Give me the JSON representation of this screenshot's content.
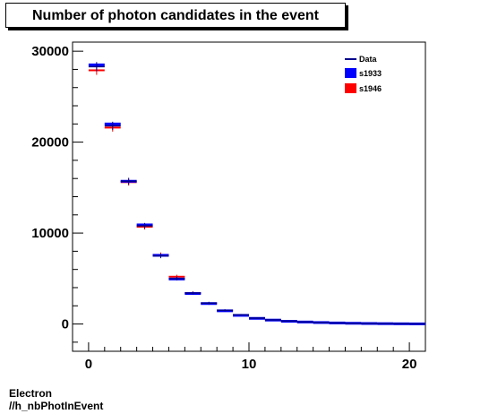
{
  "title": "Number of photon candidates in the event",
  "footer": {
    "line1": "Electron",
    "line2": "//h_nbPhotInEvent"
  },
  "colors": {
    "data": "#00008b",
    "s1933": "#0000ff",
    "s1946": "#ff0000"
  },
  "chart_data": {
    "type": "histogram",
    "title": "Number of photon candidates in the event",
    "xlim": [
      -1,
      21
    ],
    "ylim": [
      -3000,
      31000
    ],
    "x_ticks": [
      0,
      10,
      20
    ],
    "y_ticks": [
      0,
      10000,
      20000,
      30000
    ],
    "legend_position": "top-right",
    "grid": false,
    "bins_lower_edges": [
      0,
      1,
      2,
      3,
      4,
      5,
      6,
      7,
      8,
      9,
      10,
      11,
      12,
      13,
      14,
      15,
      16,
      17,
      18,
      19,
      20
    ],
    "bins_upper_edges": [
      1,
      2,
      3,
      4,
      5,
      6,
      7,
      8,
      9,
      10,
      11,
      12,
      13,
      14,
      15,
      16,
      17,
      18,
      19,
      20,
      21
    ],
    "series": [
      {
        "name": "Data",
        "style": "line",
        "values": [
          28300,
          21800,
          15700,
          10800,
          7500,
          5000,
          3400,
          2300,
          1500,
          1000,
          650,
          450,
          320,
          230,
          170,
          120,
          85,
          60,
          40,
          25,
          15
        ]
      },
      {
        "name": "s1933",
        "style": "box",
        "values": [
          28500,
          22000,
          15700,
          10900,
          7550,
          4950,
          3350,
          2250,
          1450,
          950,
          620,
          430,
          300,
          220,
          160,
          115,
          80,
          55,
          38,
          24,
          14
        ]
      },
      {
        "name": "s1946",
        "style": "box",
        "values": [
          27900,
          21600,
          15600,
          10700,
          7600,
          5200,
          3400,
          2250,
          1480,
          980,
          640,
          440,
          310,
          225,
          165,
          118,
          82,
          58,
          39,
          25,
          15
        ]
      }
    ]
  }
}
